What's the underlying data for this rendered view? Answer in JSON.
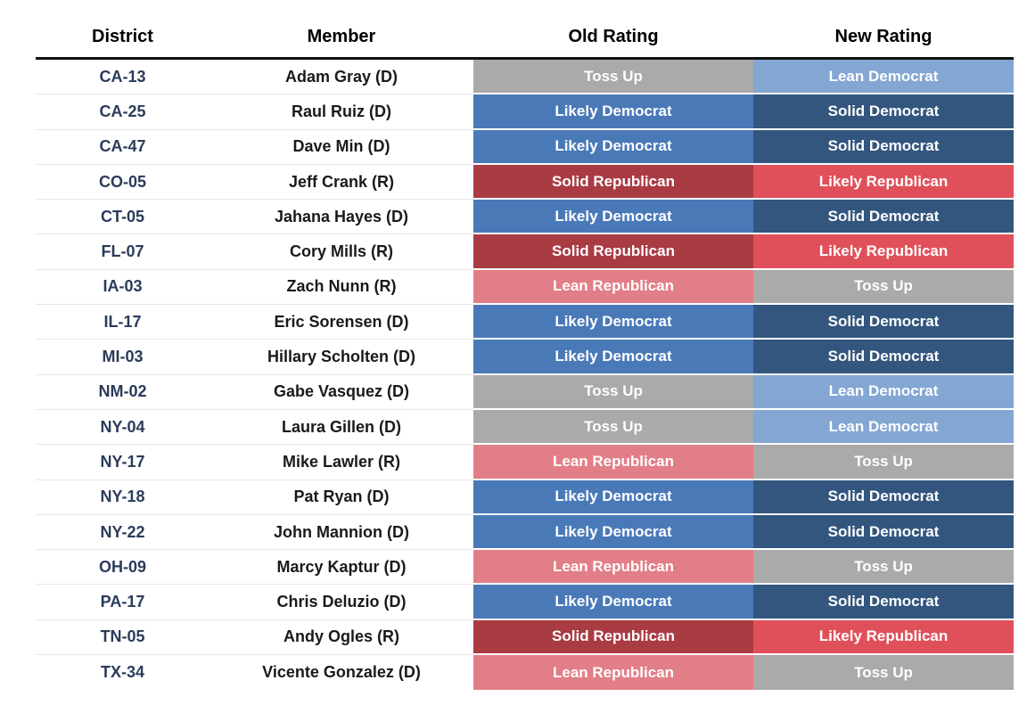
{
  "chart_data": {
    "type": "table",
    "columns": [
      "District",
      "Member",
      "Old Rating",
      "New Rating"
    ],
    "rows": [
      {
        "district": "CA-13",
        "member": "Adam Gray (D)",
        "old_rating": "Toss Up",
        "new_rating": "Lean Democrat"
      },
      {
        "district": "CA-25",
        "member": "Raul Ruiz (D)",
        "old_rating": "Likely Democrat",
        "new_rating": "Solid Democrat"
      },
      {
        "district": "CA-47",
        "member": "Dave Min (D)",
        "old_rating": "Likely Democrat",
        "new_rating": "Solid Democrat"
      },
      {
        "district": "CO-05",
        "member": "Jeff Crank (R)",
        "old_rating": "Solid Republican",
        "new_rating": "Likely Republican"
      },
      {
        "district": "CT-05",
        "member": "Jahana Hayes (D)",
        "old_rating": "Likely Democrat",
        "new_rating": "Solid Democrat"
      },
      {
        "district": "FL-07",
        "member": "Cory Mills (R)",
        "old_rating": "Solid Republican",
        "new_rating": "Likely Republican"
      },
      {
        "district": "IA-03",
        "member": "Zach Nunn (R)",
        "old_rating": "Lean Republican",
        "new_rating": "Toss Up"
      },
      {
        "district": "IL-17",
        "member": "Eric Sorensen (D)",
        "old_rating": "Likely Democrat",
        "new_rating": "Solid Democrat"
      },
      {
        "district": "MI-03",
        "member": "Hillary Scholten (D)",
        "old_rating": "Likely Democrat",
        "new_rating": "Solid Democrat"
      },
      {
        "district": "NM-02",
        "member": "Gabe Vasquez (D)",
        "old_rating": "Toss Up",
        "new_rating": "Lean Democrat"
      },
      {
        "district": "NY-04",
        "member": "Laura Gillen (D)",
        "old_rating": "Toss Up",
        "new_rating": "Lean Democrat"
      },
      {
        "district": "NY-17",
        "member": "Mike Lawler (R)",
        "old_rating": "Lean Republican",
        "new_rating": "Toss Up"
      },
      {
        "district": "NY-18",
        "member": "Pat Ryan (D)",
        "old_rating": "Likely Democrat",
        "new_rating": "Solid Democrat"
      },
      {
        "district": "NY-22",
        "member": "John Mannion (D)",
        "old_rating": "Likely Democrat",
        "new_rating": "Solid Democrat"
      },
      {
        "district": "OH-09",
        "member": "Marcy Kaptur (D)",
        "old_rating": "Lean Republican",
        "new_rating": "Toss Up"
      },
      {
        "district": "PA-17",
        "member": "Chris Deluzio (D)",
        "old_rating": "Likely Democrat",
        "new_rating": "Solid Democrat"
      },
      {
        "district": "TN-05",
        "member": "Andy Ogles (R)",
        "old_rating": "Solid Republican",
        "new_rating": "Likely Republican"
      },
      {
        "district": "TX-34",
        "member": "Vicente Gonzalez (D)",
        "old_rating": "Lean Republican",
        "new_rating": "Toss Up"
      }
    ]
  },
  "rating_colors": {
    "Toss Up": "#aaaaaa",
    "Lean Democrat": "#83a6d3",
    "Likely Democrat": "#4a79b8",
    "Solid Democrat": "#33567f",
    "Lean Republican": "#e27e87",
    "Likely Republican": "#e0505a",
    "Solid Republican": "#a93b43"
  },
  "colors": {
    "header_text": "#000000",
    "district_text": "#2b3b5a",
    "member_text": "#1a1a1a",
    "rating_text": "#ffffff",
    "header_rule": "#111111",
    "row_divider": "#e7e7e7",
    "background": "#ffffff"
  }
}
